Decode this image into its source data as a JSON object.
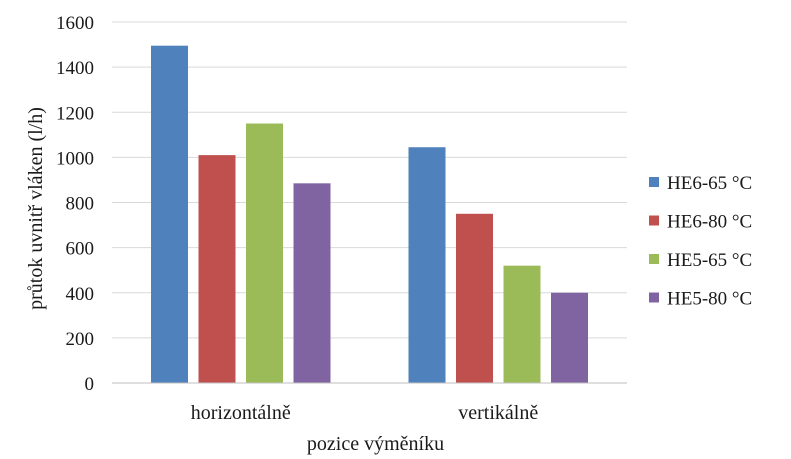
{
  "chart_data": {
    "type": "bar",
    "title": "",
    "xlabel": "pozice výměníku",
    "ylabel": "průtok uvnitř vláken (l/h)",
    "categories": [
      "horizontálně",
      "vertikálně"
    ],
    "ylim": [
      0,
      1600
    ],
    "yticks": [
      0,
      200,
      400,
      600,
      800,
      1000,
      1200,
      1400,
      1600
    ],
    "grid": true,
    "legend_position": "right",
    "series": [
      {
        "name": "HE6-65 °C",
        "color": "#4f81bd",
        "values": [
          1495,
          1045
        ]
      },
      {
        "name": "HE6-80 °C",
        "color": "#c0504d",
        "values": [
          1010,
          750
        ]
      },
      {
        "name": "HE5-65 °C",
        "color": "#9bbb59",
        "values": [
          1150,
          520
        ]
      },
      {
        "name": "HE5-80 °C",
        "color": "#8064a2",
        "values": [
          885,
          400
        ]
      }
    ]
  }
}
